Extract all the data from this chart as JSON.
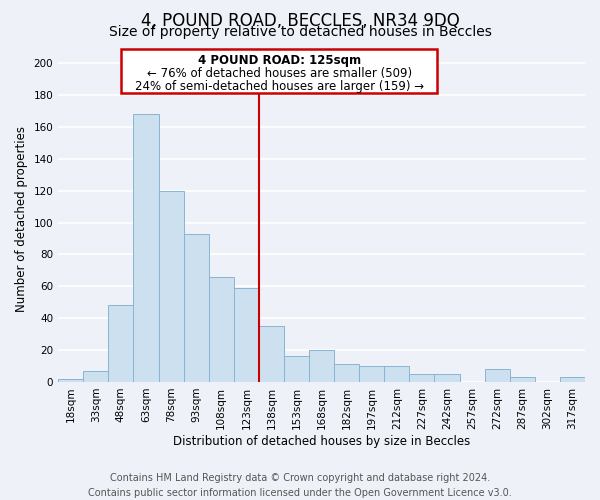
{
  "title": "4, POUND ROAD, BECCLES, NR34 9DQ",
  "subtitle": "Size of property relative to detached houses in Beccles",
  "xlabel": "Distribution of detached houses by size in Beccles",
  "ylabel": "Number of detached properties",
  "bar_labels": [
    "18sqm",
    "33sqm",
    "48sqm",
    "63sqm",
    "78sqm",
    "93sqm",
    "108sqm",
    "123sqm",
    "138sqm",
    "153sqm",
    "168sqm",
    "182sqm",
    "197sqm",
    "212sqm",
    "227sqm",
    "242sqm",
    "257sqm",
    "272sqm",
    "287sqm",
    "302sqm",
    "317sqm"
  ],
  "bar_values": [
    2,
    7,
    48,
    168,
    120,
    93,
    66,
    59,
    35,
    16,
    20,
    11,
    10,
    10,
    5,
    5,
    0,
    8,
    3,
    0,
    3
  ],
  "bar_color": "#cce0f0",
  "bar_edge_color": "#8ab4d4",
  "vline_index": 7,
  "vline_color": "#cc0000",
  "annotation_title": "4 POUND ROAD: 125sqm",
  "annotation_line1": "← 76% of detached houses are smaller (509)",
  "annotation_line2": "24% of semi-detached houses are larger (159) →",
  "annotation_box_facecolor": "#ffffff",
  "annotation_box_edgecolor": "#cc0000",
  "ylim": [
    0,
    205
  ],
  "yticks": [
    0,
    20,
    40,
    60,
    80,
    100,
    120,
    140,
    160,
    180,
    200
  ],
  "footer_line1": "Contains HM Land Registry data © Crown copyright and database right 2024.",
  "footer_line2": "Contains public sector information licensed under the Open Government Licence v3.0.",
  "background_color": "#eef2f8",
  "grid_color": "#ffffff",
  "title_fontsize": 12,
  "subtitle_fontsize": 10,
  "axis_label_fontsize": 8.5,
  "tick_fontsize": 7.5,
  "annotation_fontsize": 8.5,
  "footer_fontsize": 7
}
